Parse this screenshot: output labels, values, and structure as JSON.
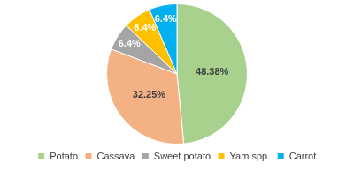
{
  "chart_data": {
    "type": "pie",
    "categories": [
      "Potato",
      "Cassava",
      "Sweet potato",
      "Yam spp.",
      "Carrot"
    ],
    "values": [
      48.38,
      32.25,
      6.4,
      6.4,
      6.4
    ],
    "value_labels": [
      "48.38%",
      "32.25%",
      "6.4%",
      "6.4%",
      "6.4%"
    ],
    "colors": [
      "#a9d18e",
      "#f4b183",
      "#a5a5a5",
      "#ffc000",
      "#00b0f0"
    ],
    "data_labels": true,
    "legend": "bottom"
  }
}
